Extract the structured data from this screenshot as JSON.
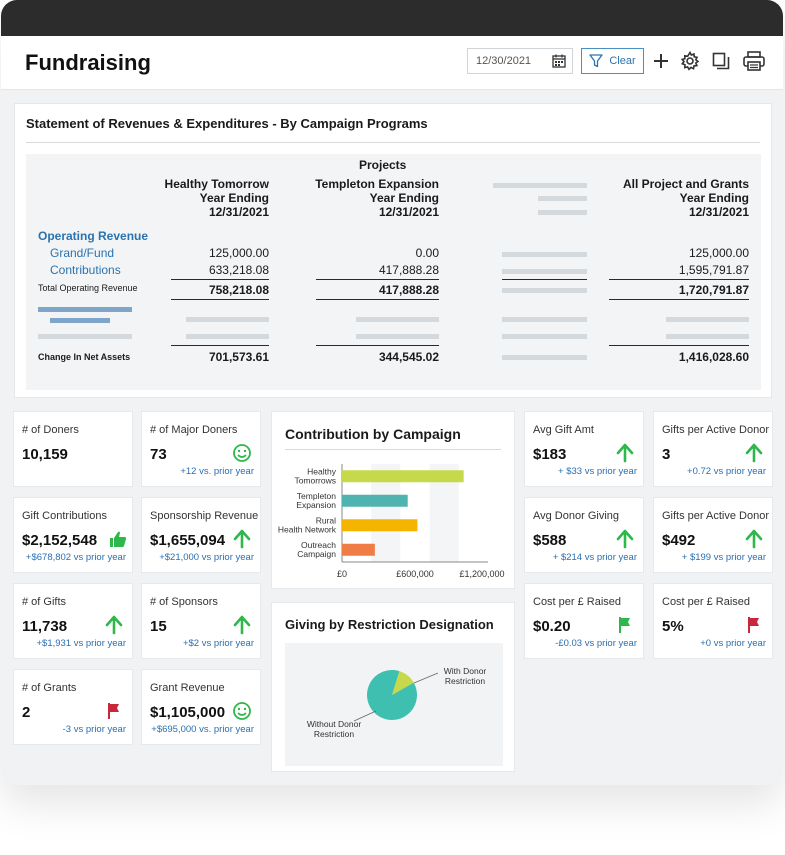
{
  "header": {
    "title": "Fundraising",
    "date_value": "12/30/2021",
    "clear_label": "Clear"
  },
  "statement": {
    "title": "Statement of Revenues & Expenditures - By Campaign Programs",
    "projects_label": "Projects",
    "columns": [
      {
        "name": "Healthy Tomorrow",
        "line2": "Year Ending",
        "line3": "12/31/2021"
      },
      {
        "name": "Templeton Expansion",
        "line2": "Year Ending",
        "line3": "12/31/2021"
      },
      {
        "name": "All Project and Grants",
        "line2": "Year Ending",
        "line3": "12/31/2021"
      }
    ],
    "section_label": "Operating Revenue",
    "rows": [
      {
        "label": "Grand/Fund",
        "values": [
          "125,000.00",
          "0.00",
          "125,000.00"
        ]
      },
      {
        "label": "Contributions",
        "values": [
          "633,218.08",
          "417,888.28",
          "1,595,791.87"
        ]
      }
    ],
    "total_row": {
      "label": "Total Operating Revenue",
      "values": [
        "758,218.08",
        "417,888.28",
        "1,720,791.87"
      ]
    },
    "net_row": {
      "label": "Change In Net Assets",
      "values": [
        "701,573.61",
        "344,545.02",
        "1,416,028.60"
      ]
    }
  },
  "kpis": {
    "doners": {
      "label": "# of Doners",
      "value": "10,159"
    },
    "major_doners": {
      "label": "# of Major Doners",
      "value": "73",
      "delta": "+12 vs. prior year"
    },
    "gift_contrib": {
      "label": "Gift Contributions",
      "value": "$2,152,548",
      "delta": "+$678,802 vs prior year"
    },
    "sponsorship": {
      "label": "Sponsorship Revenue",
      "value": "$1,655,094",
      "delta": "+$21,000 vs prior year"
    },
    "gifts": {
      "label": "# of Gifts",
      "value": "11,738",
      "delta": "+$1,931 vs prior year"
    },
    "sponsors": {
      "label": "# of Sponsors",
      "value": "15",
      "delta": "+$2 vs prior year"
    },
    "grants": {
      "label": "# of Grants",
      "value": "2",
      "delta": "-3 vs prior year"
    },
    "grant_rev": {
      "label": "Grant Revenue",
      "value": "$1,105,000",
      "delta": "+$695,000 vs. prior year"
    },
    "avg_gift": {
      "label": "Avg Gift Amt",
      "value": "$183",
      "delta": "+ $33 vs prior year"
    },
    "gifts_per_donor_1": {
      "label": "Gifts per Active Donor",
      "value": "3",
      "delta": "+0.72 vs prior year"
    },
    "avg_donor_giving": {
      "label": "Avg Donor Giving",
      "value": "$588",
      "delta": "+ $214 vs prior year"
    },
    "gifts_per_donor_2": {
      "label": "Gifts per Active Donor",
      "value": "$492",
      "delta": "+ $199 vs prior year"
    },
    "cost_raised_1": {
      "label": "Cost per £ Raised",
      "value": "$0.20",
      "delta": "-£0.03 vs prior year"
    },
    "cost_raised_2": {
      "label": "Cost per £ Raised",
      "value": "5%",
      "delta": "+0 vs prior year"
    }
  },
  "chart_data": [
    {
      "type": "bar",
      "orientation": "horizontal",
      "title": "Contribution by Campaign",
      "categories": [
        "Healthy Tomorrows",
        "Templeton Expansion",
        "Rural Health Network",
        "Outreach Campaign"
      ],
      "values": [
        1000000,
        540000,
        620000,
        270000
      ],
      "colors": [
        "#c5d94a",
        "#4fb3b0",
        "#f5b400",
        "#ef7d45"
      ],
      "xticks": [
        "£0",
        "£600,000",
        "£1,200,000"
      ],
      "xlim": [
        0,
        1200000
      ]
    },
    {
      "type": "pie",
      "title": "Giving by Restriction Designation",
      "labels": [
        "Without Donor Restriction",
        "With Donor Restriction"
      ],
      "values": [
        88,
        12
      ],
      "colors": [
        "#3fbfb0",
        "#c5d94a"
      ]
    }
  ]
}
